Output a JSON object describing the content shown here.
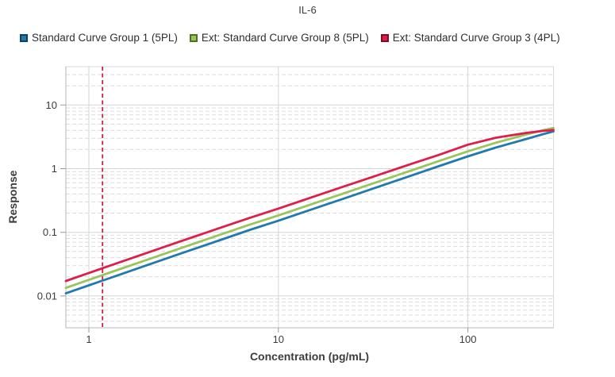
{
  "title": "IL-6",
  "legend": {
    "items": [
      {
        "label": "Standard Curve Group 1 (5PL)",
        "color": "#2279ae",
        "border": "#113f63"
      },
      {
        "label": "Ext: Standard Curve Group 8 (5PL)",
        "color": "#9ac45c",
        "border": "#4c721f"
      },
      {
        "label": "Ext: Standard Curve Group 3 (4PL)",
        "color": "#dc1f4b",
        "border": "#7c0e24"
      }
    ]
  },
  "chart_data": {
    "type": "line",
    "title": "IL-6",
    "xlabel": "Concentration (pg/mL)",
    "ylabel": "Response",
    "x_scale": "log",
    "y_scale": "log",
    "xlim": [
      0.756,
      283
    ],
    "ylim": [
      0.00316,
      40
    ],
    "x_ticks": [
      1,
      10,
      100
    ],
    "y_ticks": [
      0.01,
      0.1,
      1,
      10
    ],
    "grid": {
      "major_style": "solid",
      "minor_y_style": "dashed",
      "minor_x": false
    },
    "legend_position": "top-left",
    "marker_line": {
      "orientation": "vertical",
      "x": 1.18,
      "color": "#c51f4a",
      "style": "dashed"
    },
    "x": [
      0.756,
      1,
      1.4,
      2,
      3,
      5,
      7,
      10,
      15,
      22,
      33,
      50,
      70,
      100,
      140,
      200,
      250,
      283
    ],
    "series": [
      {
        "name": "Standard Curve Group 1 (5PL)",
        "fit": "5PL",
        "color": "#2279ae",
        "values": [
          0.011,
          0.0147,
          0.0208,
          0.03,
          0.0455,
          0.0765,
          0.108,
          0.152,
          0.229,
          0.337,
          0.507,
          0.773,
          1.09,
          1.56,
          2.14,
          2.88,
          3.48,
          3.85
        ]
      },
      {
        "name": "Ext: Standard Curve Group 8 (5PL)",
        "fit": "5PL",
        "color": "#9ac45c",
        "values": [
          0.0134,
          0.0179,
          0.0253,
          0.0365,
          0.0553,
          0.093,
          0.131,
          0.184,
          0.277,
          0.407,
          0.611,
          0.93,
          1.31,
          1.87,
          2.55,
          3.4,
          4.02,
          4.35
        ]
      },
      {
        "name": "Ext: Standard Curve Group 3 (4PL)",
        "fit": "4PL",
        "color": "#dc1f4b",
        "values": [
          0.0172,
          0.023,
          0.0325,
          0.0468,
          0.071,
          0.119,
          0.167,
          0.236,
          0.355,
          0.521,
          0.779,
          1.18,
          1.64,
          2.38,
          3.05,
          3.62,
          3.92,
          4.05
        ]
      }
    ]
  },
  "style_colors": {
    "grid_major": "#d5d5d5",
    "grid_minor": "#dcdcdc",
    "axis_line": "#b5b5b5",
    "plot_border": "#d8d8d8",
    "tick": "#9a9a9a",
    "text": "#3c3c3c"
  }
}
